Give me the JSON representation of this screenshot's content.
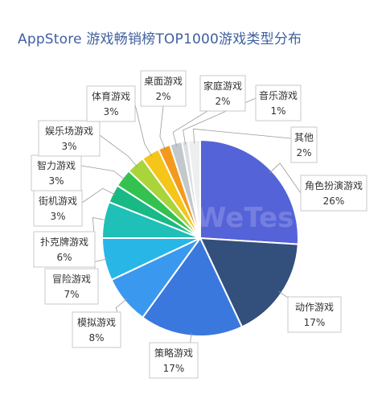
{
  "title": "AppStore 游戏畅销榜TOP1000游戏类型分布",
  "watermark": "WeTest",
  "chart_data": {
    "type": "pie",
    "title": "AppStore 游戏畅销榜TOP1000游戏类型分布",
    "start_angle_deg": 0,
    "direction": "clockwise",
    "slices": [
      {
        "name": "角色扮演游戏",
        "value": 26,
        "label": "26%",
        "color": "#5563d8"
      },
      {
        "name": "动作游戏",
        "value": 17,
        "label": "17%",
        "color": "#334f7c"
      },
      {
        "name": "策略游戏",
        "value": 17,
        "label": "17%",
        "color": "#3a78dd"
      },
      {
        "name": "模拟游戏",
        "value": 8,
        "label": "8%",
        "color": "#3a99ee"
      },
      {
        "name": "冒险游戏",
        "value": 7,
        "label": "7%",
        "color": "#28b6e6"
      },
      {
        "name": "扑克牌游戏",
        "value": 6,
        "label": "6%",
        "color": "#1ec0b8"
      },
      {
        "name": "街机游戏",
        "value": 3,
        "label": "3%",
        "color": "#18b985"
      },
      {
        "name": "智力游戏",
        "value": 3,
        "label": "3%",
        "color": "#33c24f"
      },
      {
        "name": "娱乐场游戏",
        "value": 3,
        "label": "3%",
        "color": "#a9d43a"
      },
      {
        "name": "体育游戏",
        "value": 3,
        "label": "3%",
        "color": "#f5c51a"
      },
      {
        "name": "桌面游戏",
        "value": 2,
        "label": "2%",
        "color": "#f39a1c"
      },
      {
        "name": "家庭游戏",
        "value": 2,
        "label": "2%",
        "color": "#c2c8cc"
      },
      {
        "name": "音乐游戏",
        "value": 1,
        "label": "1%",
        "color": "#dcdfe2"
      },
      {
        "name": "其他",
        "value": 2,
        "label": "2%",
        "color": "#eceef0"
      }
    ]
  }
}
